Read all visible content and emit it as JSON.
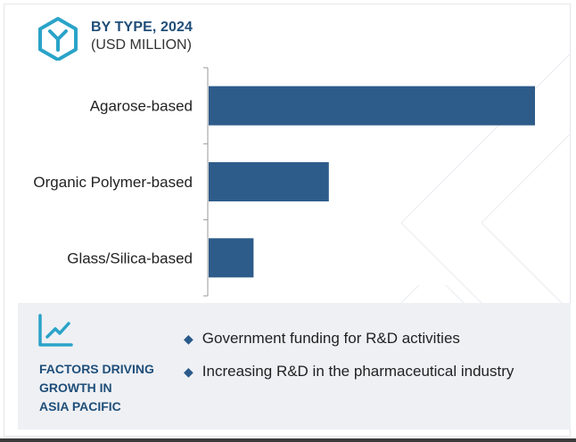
{
  "header": {
    "title": "BY TYPE, 2024",
    "subtitle": "(USD MILLION)",
    "icon": "hexagon-y-icon"
  },
  "colors": {
    "bar": "#2e5c8a",
    "title": "#1f4e79",
    "panel_bg": "#eef0f4"
  },
  "chart_data": {
    "type": "bar",
    "orientation": "horizontal",
    "categories": [
      "Agarose-based",
      "Organic Polymer-based",
      "Glass/Silica-based"
    ],
    "values": [
      100,
      37,
      14
    ],
    "title": "BY TYPE, 2024",
    "xlabel": "",
    "ylabel": "",
    "grid": false,
    "legend": "none"
  },
  "factors": {
    "icon": "trend-chart-icon",
    "title_lines": [
      "FACTORS DRIVING",
      "GROWTH IN",
      "ASIA PACIFIC"
    ],
    "items": [
      "Government funding for R&D activities",
      "Increasing R&D in the pharmaceutical industry"
    ]
  }
}
